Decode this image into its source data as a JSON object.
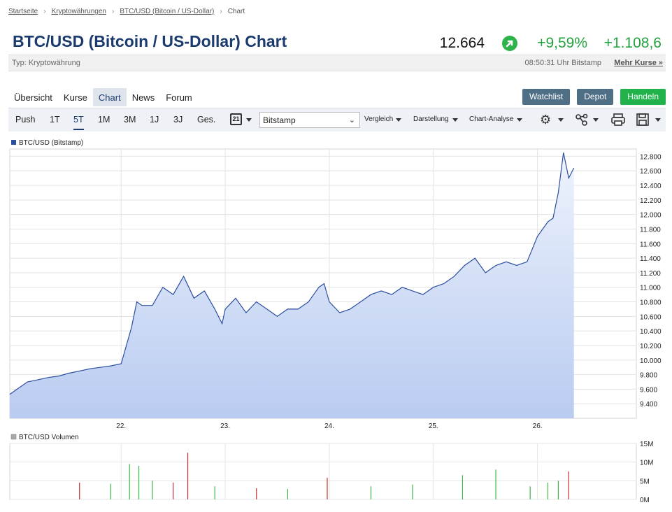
{
  "breadcrumb": {
    "items": [
      "Startseite",
      "Kryptowährungen",
      "BTC/USD (Bitcoin / US-Dollar)",
      "Chart"
    ]
  },
  "header": {
    "title": "BTC/USD (Bitcoin / US-Dollar) Chart",
    "price": "12.664",
    "change_pct": "+9,59%",
    "change_abs": "+1.108,6",
    "type": "Typ: Kryptowährung",
    "time": "08:50:31 Uhr Bitstamp",
    "more": "Mehr Kurse »"
  },
  "tabs": [
    "Übersicht",
    "Kurse",
    "Chart",
    "News",
    "Forum"
  ],
  "active_tab": "Chart",
  "actions": {
    "watchlist": "Watchlist",
    "depot": "Depot",
    "trade": "Handeln"
  },
  "toolbar": {
    "periods": [
      "Push",
      "1T",
      "5T",
      "1M",
      "3M",
      "1J",
      "3J",
      "Ges."
    ],
    "active_period": "5T",
    "calendar_day": "21",
    "exchange": "Bitstamp",
    "menus": [
      "Vergleich",
      "Darstellung",
      "Chart-Analyse"
    ]
  },
  "colors": {
    "line": "#2b4f9e",
    "fill_top": "#eef3fd",
    "fill_bottom": "#b9cbf0",
    "vol_up": "#3fb54a",
    "vol_down": "#c8312f",
    "accent": "#1b3b6f"
  },
  "chart_data": [
    {
      "type": "area",
      "legend": "BTC/USD (Bitstamp)",
      "x_ticks": [
        "22.",
        "23.",
        "24.",
        "25.",
        "26."
      ],
      "ylim": [
        9200,
        12900
      ],
      "y_ticks": [
        "9.400",
        "9.600",
        "9.800",
        "10.000",
        "10.200",
        "10.400",
        "10.600",
        "10.800",
        "11.000",
        "11.200",
        "11.400",
        "11.600",
        "11.800",
        "12.000",
        "12.200",
        "12.400",
        "12.600",
        "12.800"
      ],
      "y_tick_values": [
        9400,
        9600,
        9800,
        10000,
        10200,
        10400,
        10600,
        10800,
        11000,
        11200,
        11400,
        11600,
        11800,
        12000,
        12200,
        12400,
        12600,
        12800
      ],
      "x": [
        20.93,
        21.0,
        21.1,
        21.2,
        21.3,
        21.4,
        21.5,
        21.6,
        21.7,
        21.8,
        21.9,
        22.0,
        22.05,
        22.1,
        22.15,
        22.2,
        22.3,
        22.4,
        22.5,
        22.6,
        22.7,
        22.8,
        22.9,
        22.97,
        23.0,
        23.1,
        23.2,
        23.3,
        23.4,
        23.5,
        23.6,
        23.7,
        23.8,
        23.9,
        23.95,
        24.0,
        24.1,
        24.2,
        24.3,
        24.4,
        24.5,
        24.6,
        24.7,
        24.8,
        24.9,
        25.0,
        25.1,
        25.2,
        25.3,
        25.4,
        25.5,
        25.6,
        25.7,
        25.8,
        25.9,
        26.0,
        26.1,
        26.15,
        26.2,
        26.25,
        26.3,
        26.35
      ],
      "values": [
        9530,
        9600,
        9700,
        9730,
        9760,
        9780,
        9820,
        9850,
        9880,
        9900,
        9920,
        9950,
        10200,
        10450,
        10800,
        10750,
        10750,
        11000,
        10900,
        11150,
        10850,
        10950,
        10700,
        10500,
        10700,
        10850,
        10650,
        10800,
        10700,
        10600,
        10700,
        10700,
        10800,
        11000,
        11050,
        10800,
        10650,
        10700,
        10800,
        10900,
        10950,
        10900,
        11000,
        10950,
        10900,
        11000,
        11050,
        11150,
        11300,
        11400,
        11200,
        11300,
        11350,
        11300,
        11350,
        11700,
        11900,
        11950,
        12300,
        12850,
        12500,
        12640
      ]
    },
    {
      "type": "bar",
      "legend": "BTC/USD Volumen",
      "y_ticks": [
        "0M",
        "5M",
        "10M",
        "15M"
      ],
      "y_tick_values": [
        0,
        5,
        10,
        15
      ],
      "ylim": [
        0,
        15
      ],
      "x": [
        21.6,
        21.9,
        22.08,
        22.17,
        22.3,
        22.5,
        22.64,
        22.9,
        23.3,
        23.6,
        23.98,
        24.4,
        24.8,
        25.28,
        25.6,
        25.93,
        26.1,
        26.2,
        26.3
      ],
      "values_mil": [
        4.5,
        4.2,
        9.5,
        9.0,
        5.0,
        4.5,
        12.5,
        3.5,
        3.0,
        2.8,
        5.8,
        3.5,
        4.0,
        6.5,
        8.0,
        3.5,
        4.5,
        5.0,
        7.5
      ],
      "direction": [
        "down",
        "up",
        "up",
        "up",
        "up",
        "down",
        "down",
        "up",
        "down",
        "up",
        "down",
        "up",
        "up",
        "up",
        "up",
        "up",
        "up",
        "up",
        "down"
      ]
    }
  ]
}
